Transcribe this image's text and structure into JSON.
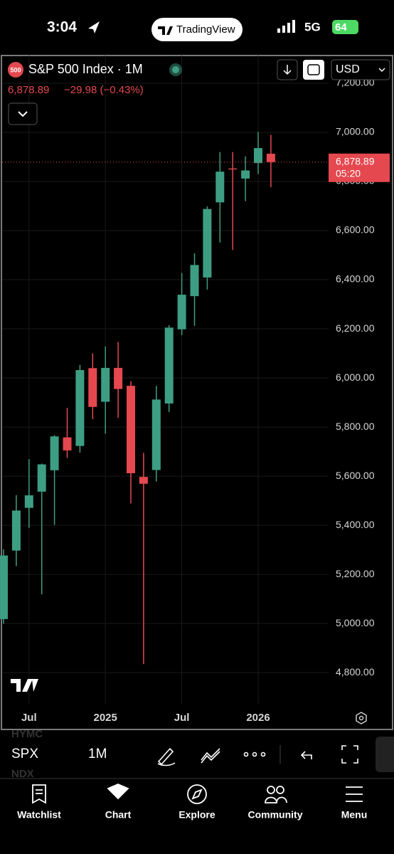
{
  "status_bar": {
    "time": "3:04",
    "app": "TradingView",
    "network": "5G",
    "battery": "64"
  },
  "header": {
    "badge": "500",
    "title": "S&P 500 Index · 1M",
    "price": "6,878.89",
    "change": "−29.98 (−0.43%)",
    "currency": "USD"
  },
  "chart_data": {
    "type": "candlestick",
    "categories": [
      null,
      null,
      "Jul",
      null,
      null,
      null,
      null,
      null,
      "2025",
      null,
      null,
      null,
      null,
      null,
      "Jul",
      null,
      null,
      null,
      null,
      null,
      "2026",
      null
    ],
    "open": [
      5018,
      5297,
      5471,
      5537,
      5624,
      5758,
      5723,
      6040,
      5903,
      6041,
      5968,
      5597,
      5625,
      5896,
      6198,
      6333,
      6409,
      6715,
      6853,
      6812,
      6875,
      6913
    ],
    "high": [
      5302,
      5523,
      5669,
      5651,
      5767,
      5878,
      6053,
      6100,
      6128,
      6147,
      5987,
      5695,
      5968,
      6215,
      6427,
      6508,
      6699,
      6920,
      6920,
      6902,
      7002,
      6990
    ],
    "low": [
      4999,
      5234,
      5390,
      5119,
      5402,
      5674,
      5696,
      5832,
      5773,
      5837,
      5489,
      4835,
      5578,
      5861,
      6174,
      6212,
      6360,
      6551,
      6521,
      6720,
      6830,
      6777
    ],
    "close": [
      5277,
      5460,
      5522,
      5648,
      5762,
      5705,
      6032,
      5882,
      6041,
      5955,
      5612,
      5569,
      5912,
      6205,
      6339,
      6460,
      6688,
      6840,
      6849,
      6845,
      6936,
      6878.89
    ],
    "up_color": "#3d9e83",
    "down_color": "#e5484f",
    "ylim": [
      4670,
      7313
    ],
    "yticks": [
      {
        "value": 4800,
        "label": "4,800.00"
      },
      {
        "value": 5000,
        "label": "5,000.00"
      },
      {
        "value": 5200,
        "label": "5,200.00"
      },
      {
        "value": 5400,
        "label": "5,400.00"
      },
      {
        "value": 5600,
        "label": "5,600.00"
      },
      {
        "value": 5800,
        "label": "5,800.00"
      },
      {
        "value": 6000,
        "label": "6,000.00"
      },
      {
        "value": 6200,
        "label": "6,200.00"
      },
      {
        "value": 6400,
        "label": "6,400.00"
      },
      {
        "value": 6600,
        "label": "6,600.00"
      },
      {
        "value": 6800,
        "label": "6,800.00"
      },
      {
        "value": 7000,
        "label": "7,000.00"
      },
      {
        "value": 7200,
        "label": "7,200.00"
      }
    ],
    "grid": true,
    "last_price": {
      "value": 6878.89,
      "label": "6,878.89"
    },
    "countdown": "05:20"
  },
  "toolbar": {
    "symbol": "SPX",
    "interval": "1M",
    "watch_above": "HYMC",
    "watch_below": "NDX"
  },
  "nav": [
    "Watchlist",
    "Chart",
    "Explore",
    "Community",
    "Menu"
  ]
}
